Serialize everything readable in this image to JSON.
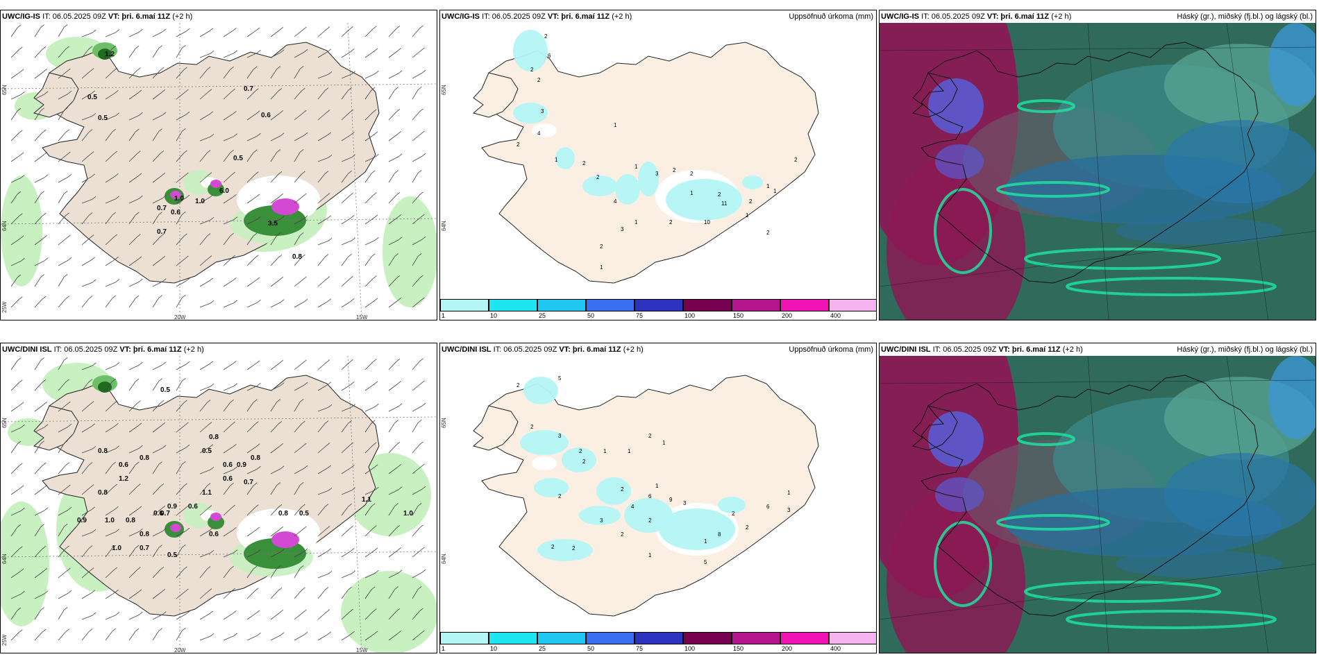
{
  "panels": [
    {
      "id": "p1",
      "model": "UWC/IG-IS",
      "it": "IT: 06.05.2025 09Z",
      "vt": "VT: þri. 6.maí 11Z",
      "lead": "(+2 h)",
      "right": "",
      "values": [
        {
          "t": "0.5"
        },
        {
          "t": "0.5"
        },
        {
          "t": "0.7"
        },
        {
          "t": "0.6"
        },
        {
          "t": "0.5"
        },
        {
          "t": "1.0"
        },
        {
          "t": "0.7"
        },
        {
          "t": "0.6"
        },
        {
          "t": "0.7"
        },
        {
          "t": "3.5"
        },
        {
          "t": "0.8"
        },
        {
          "t": "6.0"
        },
        {
          "t": "1.0"
        },
        {
          "t": "1.2"
        }
      ],
      "axis": {
        "lat65": "65N",
        "lat64": "64N",
        "lon25": "25W",
        "lon20": "20W",
        "lon15": "15W"
      }
    },
    {
      "id": "p2",
      "model": "UWC/IG-IS",
      "it": "IT: 06.05.2025 09Z",
      "vt": "VT: þri. 6.maí 11Z",
      "lead": "(+2 h)",
      "right": "Uppsöfnuð úrkoma (mm)",
      "values": [
        {
          "t": "2"
        },
        {
          "t": "6"
        },
        {
          "t": "2"
        },
        {
          "t": "2"
        },
        {
          "t": "3"
        },
        {
          "t": "4"
        },
        {
          "t": "2"
        },
        {
          "t": "1"
        },
        {
          "t": "2"
        },
        {
          "t": "2"
        },
        {
          "t": "1"
        },
        {
          "t": "3"
        },
        {
          "t": "2"
        },
        {
          "t": "2"
        },
        {
          "t": "1"
        },
        {
          "t": "2"
        },
        {
          "t": "4"
        },
        {
          "t": "3"
        },
        {
          "t": "1"
        },
        {
          "t": "2"
        },
        {
          "t": "11"
        },
        {
          "t": "2"
        },
        {
          "t": "10"
        },
        {
          "t": "1"
        },
        {
          "t": "2"
        },
        {
          "t": "1"
        },
        {
          "t": "2"
        },
        {
          "t": "1"
        },
        {
          "t": "1"
        },
        {
          "t": "2"
        },
        {
          "t": "1"
        }
      ],
      "axis": {
        "lat65": "65N",
        "lat64": "64N"
      }
    },
    {
      "id": "p3",
      "model": "UWC/IG-IS",
      "it": "IT: 06.05.2025 09Z",
      "vt": "VT: þri. 6.maí 11Z",
      "lead": "(+2 h)",
      "right": "Háský (gr.), miðský (fj.bl.) og lágský (bl.)",
      "values": []
    },
    {
      "id": "p4",
      "model": "UWC/DINI ISL",
      "it": "IT: 06.05.2025 09Z",
      "vt": "VT: þri. 6.maí 11Z",
      "lead": "(+2 h)",
      "right": "",
      "values": [
        {
          "t": "0.5"
        },
        {
          "t": "0.8"
        },
        {
          "t": "0.8"
        },
        {
          "t": "0.6"
        },
        {
          "t": "1.2"
        },
        {
          "t": "0.8"
        },
        {
          "t": "0.8"
        },
        {
          "t": "0.5"
        },
        {
          "t": "0.6"
        },
        {
          "t": "0.9"
        },
        {
          "t": "0.6"
        },
        {
          "t": "1.1"
        },
        {
          "t": "0.6"
        },
        {
          "t": "0.8"
        },
        {
          "t": "0.7"
        },
        {
          "t": "0.9"
        },
        {
          "t": "1.0"
        },
        {
          "t": "0.8"
        },
        {
          "t": "0.6"
        },
        {
          "t": "0.8"
        },
        {
          "t": "0.7"
        },
        {
          "t": "1.0"
        },
        {
          "t": "0.7"
        },
        {
          "t": "0.5"
        },
        {
          "t": "0.9"
        },
        {
          "t": "0.6"
        },
        {
          "t": "0.8"
        },
        {
          "t": "0.5"
        },
        {
          "t": "1.1"
        },
        {
          "t": "1.0"
        }
      ],
      "axis": {
        "lat65": "65N",
        "lat64": "64N",
        "lon25": "25W",
        "lon20": "20W",
        "lon15": "15W"
      }
    },
    {
      "id": "p5",
      "model": "UWC/DINI ISL",
      "it": "IT: 06.05.2025 09Z",
      "vt": "VT: þri. 6.maí 11Z",
      "lead": "(+2 h)",
      "right": "Uppsöfnuð úrkoma (mm)",
      "values": [
        {
          "t": "5"
        },
        {
          "t": "2"
        },
        {
          "t": "2"
        },
        {
          "t": "2"
        },
        {
          "t": "3"
        },
        {
          "t": "2"
        },
        {
          "t": "1"
        },
        {
          "t": "1"
        },
        {
          "t": "2"
        },
        {
          "t": "1"
        },
        {
          "t": "2"
        },
        {
          "t": "2"
        },
        {
          "t": "1"
        },
        {
          "t": "3"
        },
        {
          "t": "2"
        },
        {
          "t": "4"
        },
        {
          "t": "2"
        },
        {
          "t": "6"
        },
        {
          "t": "9"
        },
        {
          "t": "3"
        },
        {
          "t": "2"
        },
        {
          "t": "2"
        },
        {
          "t": "1"
        },
        {
          "t": "8"
        },
        {
          "t": "5"
        },
        {
          "t": "2"
        },
        {
          "t": "1"
        },
        {
          "t": "3"
        },
        {
          "t": "2"
        },
        {
          "t": "6"
        },
        {
          "t": "1"
        }
      ],
      "axis": {
        "lat65": "65N",
        "lat64": "64N"
      }
    },
    {
      "id": "p6",
      "model": "UWC/DINI ISL",
      "it": "IT: 06.05.2025 09Z",
      "vt": "VT: þri. 6.maí 11Z",
      "lead": "(+2 h)",
      "right": "Háský (gr.), miðský (fj.bl.) og lágský (bl.)",
      "values": []
    }
  ],
  "colorbar": {
    "colors": [
      "#b4f5f5",
      "#1ee6f0",
      "#1ec8f0",
      "#3c6ef0",
      "#2d32be",
      "#780050",
      "#b4148c",
      "#f014b4",
      "#f5b4f0"
    ],
    "labels": [
      "1",
      "10",
      "25",
      "50",
      "75",
      "100",
      "150",
      "200",
      "400"
    ]
  },
  "style": {
    "land": "#ece0d4",
    "land2": "#fbefe4",
    "snow": "#ffffff",
    "sea": "#ffffff"
  }
}
